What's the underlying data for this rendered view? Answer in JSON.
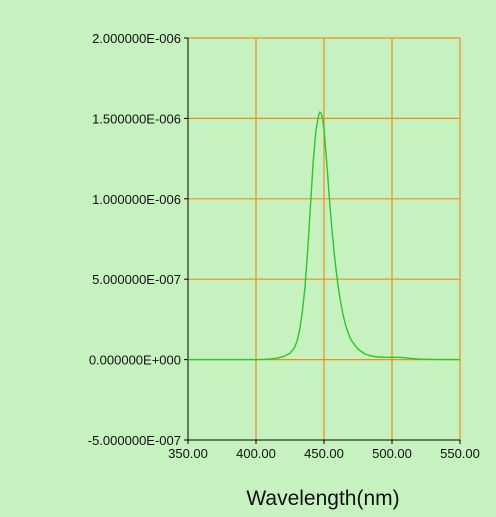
{
  "chart_data": {
    "type": "line",
    "title": "",
    "xlabel": "Wavelength(nm)",
    "ylabel": "",
    "xlim": [
      350,
      550
    ],
    "ylim": [
      -5e-07,
      2e-06
    ],
    "x_ticks": [
      350,
      400,
      450,
      500,
      550
    ],
    "y_ticks": [
      -5e-07,
      0,
      5e-07,
      1e-06,
      1.5e-06,
      2e-06
    ],
    "x_tick_labels": [
      "350.00",
      "400.00",
      "450.00",
      "500.00",
      "550.00"
    ],
    "y_tick_labels": [
      "-5.000000E-007",
      "0.000000E+000",
      "5.000000E-007",
      "1.000000E-006",
      "1.500000E-006",
      "2.000000E-006"
    ],
    "grid": true,
    "legend": "none",
    "colors": {
      "background": "#c6f2c0",
      "grid": "#f08c1e",
      "series": "#2cc52c",
      "axis": "#000000"
    },
    "series": [
      {
        "x": [
          350,
          380,
          400,
          405,
          410,
          415,
          420,
          425,
          428,
          430,
          432,
          434,
          436,
          438,
          440,
          442,
          444,
          446,
          447,
          448,
          449,
          450,
          452,
          454,
          456,
          458,
          460,
          462,
          464,
          466,
          468,
          470,
          475,
          480,
          485,
          490,
          495,
          500,
          505,
          510,
          515,
          520,
          530,
          550
        ],
        "y": [
          0,
          0,
          0,
          1e-09,
          3e-09,
          8e-09,
          1.8e-08,
          4e-08,
          7e-08,
          1.1e-07,
          1.8e-07,
          2.9e-07,
          4.5e-07,
          6.8e-07,
          9.5e-07,
          1.22e-06,
          1.42e-06,
          1.52e-06,
          1.54e-06,
          1.53e-06,
          1.5e-06,
          1.43e-06,
          1.23e-06,
          1e-06,
          7.9e-07,
          6.2e-07,
          4.8e-07,
          3.7e-07,
          2.8e-07,
          2.1e-07,
          1.6e-07,
          1.2e-07,
          6.5e-08,
          3.5e-08,
          2.2e-08,
          1.6e-08,
          1.4e-08,
          1.4e-08,
          1.4e-08,
          1.1e-08,
          6e-09,
          3e-09,
          1e-09,
          0
        ]
      }
    ]
  }
}
